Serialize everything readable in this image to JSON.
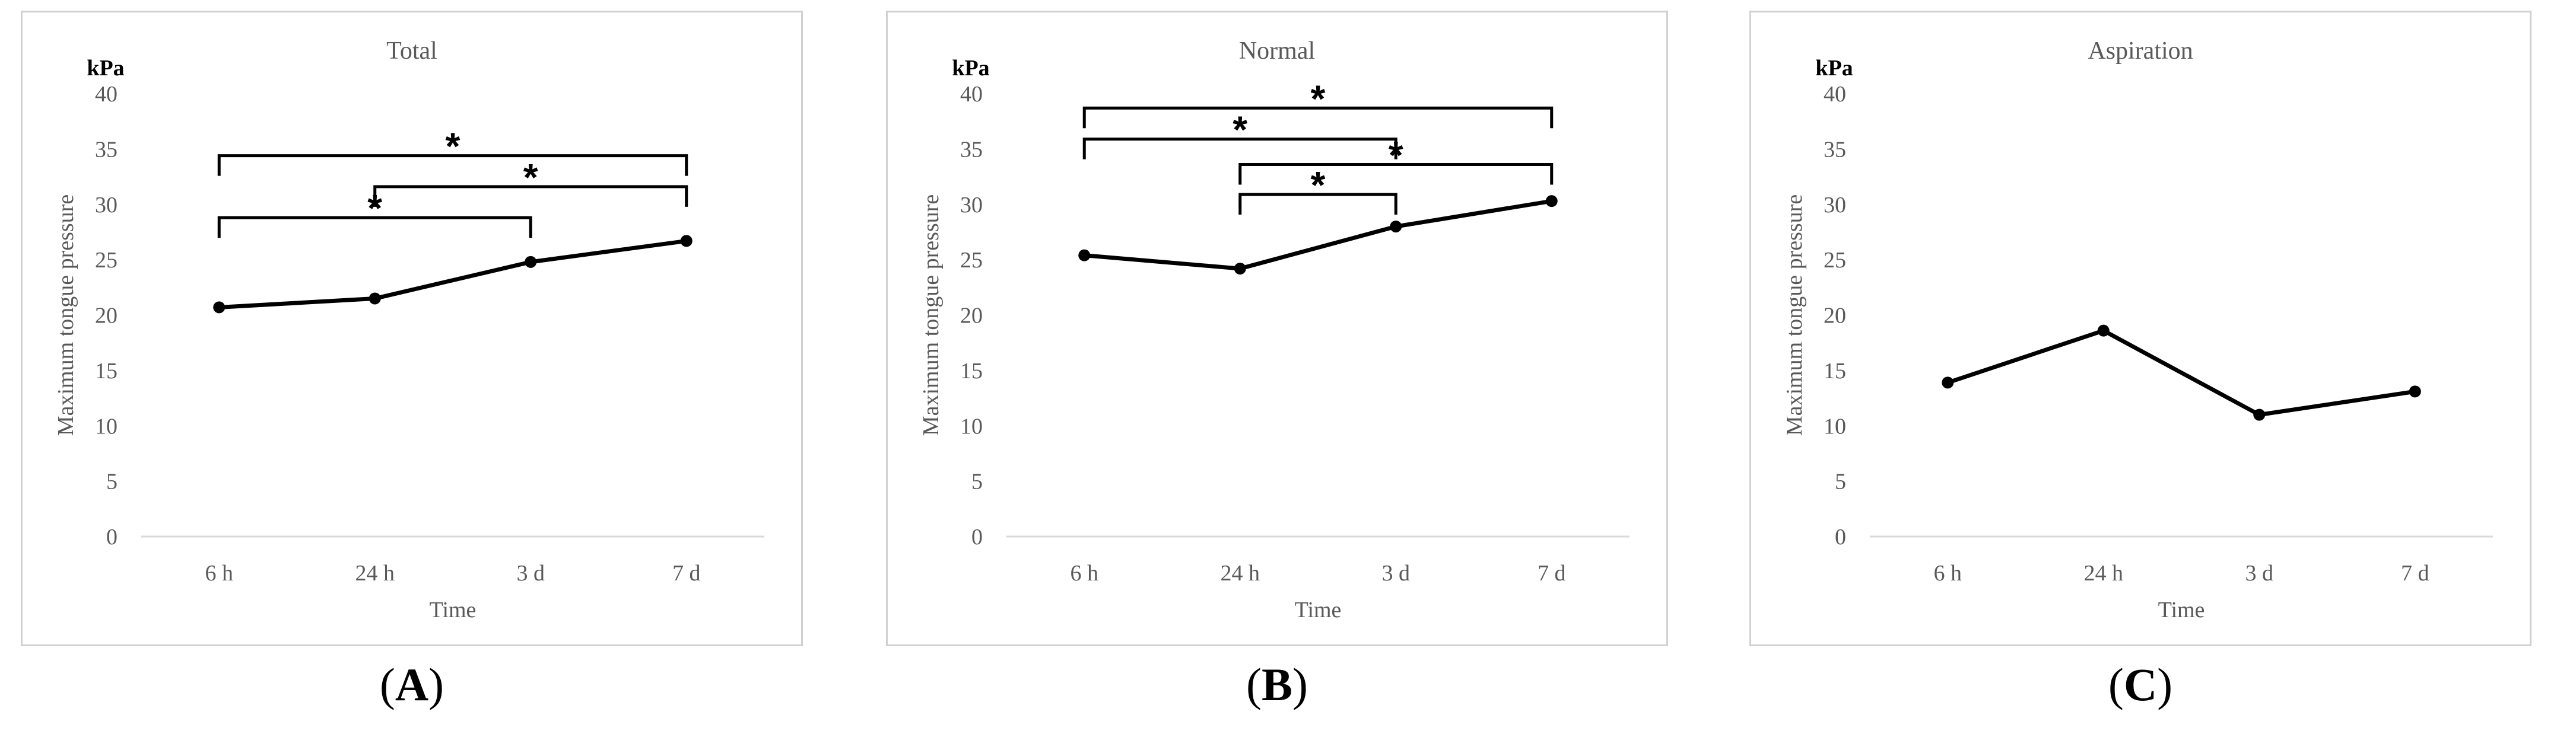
{
  "chart_data": [
    {
      "type": "line",
      "title": "Total",
      "unit_label": "kPa",
      "xlabel": "Time",
      "ylabel": "Maximum tongue pressure",
      "categories": [
        "6 h",
        "24 h",
        "3 d",
        "7 d"
      ],
      "yticks": [
        "0",
        "5",
        "10",
        "15",
        "20",
        "25",
        "30",
        "35",
        "40"
      ],
      "ylim": [
        0,
        40
      ],
      "grid": false,
      "series": [
        {
          "values": [
            20.7,
            21.5,
            24.8,
            26.7
          ]
        }
      ],
      "significance": [
        {
          "from": 0,
          "to": 2,
          "level": 28.8,
          "label": "*"
        },
        {
          "from": 1,
          "to": 3,
          "level": 31.6,
          "label": "*"
        },
        {
          "from": 0,
          "to": 3,
          "level": 34.4,
          "label": "*"
        }
      ],
      "color": "#000000"
    },
    {
      "type": "line",
      "title": "Normal",
      "unit_label": "kPa",
      "xlabel": "Time",
      "ylabel": "Maximum tongue pressure",
      "categories": [
        "6 h",
        "24 h",
        "3 d",
        "7 d"
      ],
      "yticks": [
        "0",
        "5",
        "10",
        "15",
        "20",
        "25",
        "30",
        "35",
        "40"
      ],
      "ylim": [
        0,
        40
      ],
      "grid": false,
      "series": [
        {
          "values": [
            25.4,
            24.2,
            28.0,
            30.3
          ]
        }
      ],
      "significance": [
        {
          "from": 1,
          "to": 2,
          "level": 30.9,
          "label": "*"
        },
        {
          "from": 1,
          "to": 3,
          "level": 33.6,
          "label": "*"
        },
        {
          "from": 0,
          "to": 2,
          "level": 35.9,
          "label": "*"
        },
        {
          "from": 0,
          "to": 3,
          "level": 38.7,
          "label": "*"
        }
      ],
      "color": "#000000"
    },
    {
      "type": "line",
      "title": "Aspiration",
      "unit_label": "kPa",
      "xlabel": "Time",
      "ylabel": "Maximum tongue pressure",
      "categories": [
        "6 h",
        "24 h",
        "3 d",
        "7 d"
      ],
      "yticks": [
        "0",
        "5",
        "10",
        "15",
        "20",
        "25",
        "30",
        "35",
        "40"
      ],
      "ylim": [
        0,
        40
      ],
      "grid": false,
      "series": [
        {
          "values": [
            13.9,
            18.6,
            11.0,
            13.1
          ]
        }
      ],
      "significance": [],
      "color": "#000000"
    }
  ],
  "captions": [
    {
      "open": "(",
      "letter": "A",
      "close": ")"
    },
    {
      "open": "(",
      "letter": "B",
      "close": ")"
    },
    {
      "open": "(",
      "letter": "C",
      "close": ")"
    }
  ]
}
